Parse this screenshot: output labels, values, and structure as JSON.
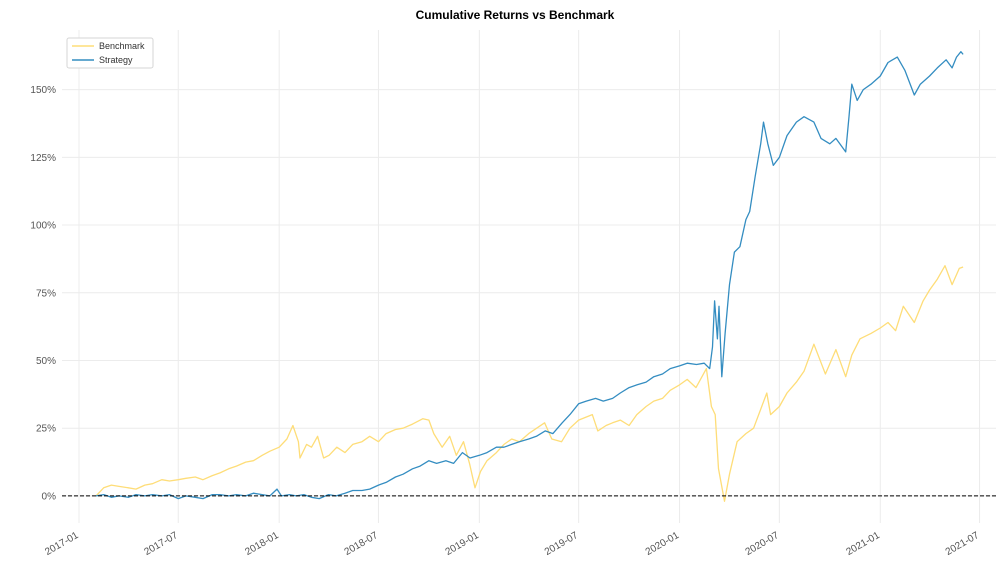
{
  "chart_data": {
    "type": "line",
    "title": "Cumulative Returns vs Benchmark",
    "xlabel": "",
    "ylabel": "",
    "x_range": [
      "2016-12-01",
      "2021-07-31"
    ],
    "ylim": [
      -0.1,
      1.72
    ],
    "y_ticks": [
      0,
      0.25,
      0.5,
      0.75,
      1.0,
      1.25,
      1.5
    ],
    "y_tick_labels": [
      "0%",
      "25%",
      "50%",
      "75%",
      "100%",
      "125%",
      "150%"
    ],
    "x_ticks": [
      "2017-01-01",
      "2017-07-01",
      "2018-01-01",
      "2018-07-01",
      "2019-01-01",
      "2019-07-01",
      "2020-01-01",
      "2020-07-01",
      "2021-01-01",
      "2021-07-01"
    ],
    "x_tick_labels": [
      "2017-01",
      "2017-07",
      "2018-01",
      "2018-07",
      "2019-01",
      "2019-07",
      "2020-01",
      "2020-07",
      "2021-01",
      "2021-07"
    ],
    "grid": true,
    "legend_placement": "top-left",
    "baseline": 0,
    "colors": {
      "benchmark": "#fedd78",
      "strategy": "#348dc1",
      "baseline": "#000000"
    },
    "series": [
      {
        "name": "Benchmark",
        "color": "#fedd78",
        "points": [
          [
            "2017-02-01",
            0.0
          ],
          [
            "2017-02-15",
            0.03
          ],
          [
            "2017-03-01",
            0.04
          ],
          [
            "2017-03-15",
            0.035
          ],
          [
            "2017-04-01",
            0.03
          ],
          [
            "2017-04-15",
            0.025
          ],
          [
            "2017-05-01",
            0.04
          ],
          [
            "2017-05-15",
            0.045
          ],
          [
            "2017-06-01",
            0.06
          ],
          [
            "2017-06-15",
            0.055
          ],
          [
            "2017-07-01",
            0.06
          ],
          [
            "2017-07-15",
            0.065
          ],
          [
            "2017-08-01",
            0.07
          ],
          [
            "2017-08-15",
            0.06
          ],
          [
            "2017-09-01",
            0.075
          ],
          [
            "2017-09-15",
            0.085
          ],
          [
            "2017-10-01",
            0.1
          ],
          [
            "2017-10-15",
            0.11
          ],
          [
            "2017-11-01",
            0.125
          ],
          [
            "2017-11-15",
            0.13
          ],
          [
            "2017-12-01",
            0.15
          ],
          [
            "2017-12-15",
            0.165
          ],
          [
            "2018-01-01",
            0.18
          ],
          [
            "2018-01-15",
            0.21
          ],
          [
            "2018-01-26",
            0.26
          ],
          [
            "2018-02-05",
            0.2
          ],
          [
            "2018-02-08",
            0.14
          ],
          [
            "2018-02-20",
            0.19
          ],
          [
            "2018-03-01",
            0.18
          ],
          [
            "2018-03-12",
            0.22
          ],
          [
            "2018-03-23",
            0.14
          ],
          [
            "2018-04-02",
            0.15
          ],
          [
            "2018-04-16",
            0.18
          ],
          [
            "2018-05-01",
            0.16
          ],
          [
            "2018-05-15",
            0.19
          ],
          [
            "2018-06-01",
            0.2
          ],
          [
            "2018-06-15",
            0.22
          ],
          [
            "2018-07-01",
            0.2
          ],
          [
            "2018-07-15",
            0.23
          ],
          [
            "2018-08-01",
            0.245
          ],
          [
            "2018-08-15",
            0.25
          ],
          [
            "2018-09-01",
            0.265
          ],
          [
            "2018-09-20",
            0.285
          ],
          [
            "2018-10-01",
            0.28
          ],
          [
            "2018-10-10",
            0.23
          ],
          [
            "2018-10-25",
            0.18
          ],
          [
            "2018-11-08",
            0.22
          ],
          [
            "2018-11-20",
            0.15
          ],
          [
            "2018-12-03",
            0.2
          ],
          [
            "2018-12-14",
            0.12
          ],
          [
            "2018-12-24",
            0.03
          ],
          [
            "2019-01-03",
            0.09
          ],
          [
            "2019-01-15",
            0.13
          ],
          [
            "2019-02-01",
            0.16
          ],
          [
            "2019-02-15",
            0.19
          ],
          [
            "2019-03-01",
            0.21
          ],
          [
            "2019-03-15",
            0.2
          ],
          [
            "2019-04-01",
            0.23
          ],
          [
            "2019-04-30",
            0.27
          ],
          [
            "2019-05-13",
            0.21
          ],
          [
            "2019-05-31",
            0.2
          ],
          [
            "2019-06-15",
            0.25
          ],
          [
            "2019-07-01",
            0.28
          ],
          [
            "2019-07-26",
            0.3
          ],
          [
            "2019-08-05",
            0.24
          ],
          [
            "2019-08-20",
            0.26
          ],
          [
            "2019-09-01",
            0.27
          ],
          [
            "2019-09-15",
            0.28
          ],
          [
            "2019-10-01",
            0.26
          ],
          [
            "2019-10-15",
            0.3
          ],
          [
            "2019-11-01",
            0.33
          ],
          [
            "2019-11-15",
            0.35
          ],
          [
            "2019-12-01",
            0.36
          ],
          [
            "2019-12-15",
            0.39
          ],
          [
            "2020-01-01",
            0.41
          ],
          [
            "2020-01-15",
            0.43
          ],
          [
            "2020-01-31",
            0.4
          ],
          [
            "2020-02-19",
            0.47
          ],
          [
            "2020-02-28",
            0.33
          ],
          [
            "2020-03-06",
            0.3
          ],
          [
            "2020-03-12",
            0.1
          ],
          [
            "2020-03-23",
            -0.02
          ],
          [
            "2020-04-01",
            0.08
          ],
          [
            "2020-04-15",
            0.2
          ],
          [
            "2020-05-01",
            0.23
          ],
          [
            "2020-05-15",
            0.25
          ],
          [
            "2020-06-08",
            0.38
          ],
          [
            "2020-06-15",
            0.3
          ],
          [
            "2020-07-01",
            0.33
          ],
          [
            "2020-07-15",
            0.38
          ],
          [
            "2020-08-01",
            0.42
          ],
          [
            "2020-08-15",
            0.46
          ],
          [
            "2020-09-02",
            0.56
          ],
          [
            "2020-09-23",
            0.45
          ],
          [
            "2020-10-12",
            0.54
          ],
          [
            "2020-10-30",
            0.44
          ],
          [
            "2020-11-10",
            0.52
          ],
          [
            "2020-11-25",
            0.58
          ],
          [
            "2020-12-15",
            0.6
          ],
          [
            "2021-01-01",
            0.62
          ],
          [
            "2021-01-15",
            0.64
          ],
          [
            "2021-01-29",
            0.61
          ],
          [
            "2021-02-12",
            0.7
          ],
          [
            "2021-03-04",
            0.64
          ],
          [
            "2021-03-20",
            0.72
          ],
          [
            "2021-04-01",
            0.76
          ],
          [
            "2021-04-15",
            0.8
          ],
          [
            "2021-04-29",
            0.85
          ],
          [
            "2021-05-12",
            0.78
          ],
          [
            "2021-05-25",
            0.84
          ],
          [
            "2021-06-01",
            0.845
          ]
        ]
      },
      {
        "name": "Strategy",
        "color": "#348dc1",
        "points": [
          [
            "2017-02-01",
            0.0
          ],
          [
            "2017-02-15",
            0.005
          ],
          [
            "2017-03-01",
            -0.005
          ],
          [
            "2017-03-15",
            0.0
          ],
          [
            "2017-04-01",
            -0.005
          ],
          [
            "2017-04-15",
            0.005
          ],
          [
            "2017-05-01",
            0.0
          ],
          [
            "2017-05-15",
            0.005
          ],
          [
            "2017-06-01",
            0.0
          ],
          [
            "2017-06-15",
            0.005
          ],
          [
            "2017-07-01",
            -0.01
          ],
          [
            "2017-07-15",
            0.0
          ],
          [
            "2017-08-01",
            -0.005
          ],
          [
            "2017-08-15",
            -0.01
          ],
          [
            "2017-09-01",
            0.005
          ],
          [
            "2017-09-15",
            0.005
          ],
          [
            "2017-10-01",
            0.0
          ],
          [
            "2017-10-15",
            0.005
          ],
          [
            "2017-11-01",
            0.0
          ],
          [
            "2017-11-15",
            0.01
          ],
          [
            "2017-12-01",
            0.005
          ],
          [
            "2017-12-15",
            0.0
          ],
          [
            "2017-12-28",
            0.025
          ],
          [
            "2018-01-05",
            0.0
          ],
          [
            "2018-01-20",
            0.005
          ],
          [
            "2018-02-01",
            0.0
          ],
          [
            "2018-02-15",
            0.005
          ],
          [
            "2018-03-01",
            -0.005
          ],
          [
            "2018-03-15",
            -0.01
          ],
          [
            "2018-04-01",
            0.005
          ],
          [
            "2018-04-15",
            0.0
          ],
          [
            "2018-05-01",
            0.01
          ],
          [
            "2018-05-15",
            0.02
          ],
          [
            "2018-06-01",
            0.02
          ],
          [
            "2018-06-15",
            0.025
          ],
          [
            "2018-07-01",
            0.04
          ],
          [
            "2018-07-15",
            0.05
          ],
          [
            "2018-08-01",
            0.07
          ],
          [
            "2018-08-15",
            0.08
          ],
          [
            "2018-09-01",
            0.1
          ],
          [
            "2018-09-15",
            0.11
          ],
          [
            "2018-10-01",
            0.13
          ],
          [
            "2018-10-15",
            0.12
          ],
          [
            "2018-11-01",
            0.13
          ],
          [
            "2018-11-15",
            0.12
          ],
          [
            "2018-12-01",
            0.16
          ],
          [
            "2018-12-15",
            0.14
          ],
          [
            "2019-01-01",
            0.15
          ],
          [
            "2019-01-15",
            0.16
          ],
          [
            "2019-02-01",
            0.18
          ],
          [
            "2019-02-15",
            0.18
          ],
          [
            "2019-03-01",
            0.19
          ],
          [
            "2019-03-15",
            0.2
          ],
          [
            "2019-04-01",
            0.21
          ],
          [
            "2019-04-15",
            0.22
          ],
          [
            "2019-05-01",
            0.24
          ],
          [
            "2019-05-15",
            0.23
          ],
          [
            "2019-06-01",
            0.27
          ],
          [
            "2019-06-15",
            0.3
          ],
          [
            "2019-07-01",
            0.34
          ],
          [
            "2019-07-15",
            0.35
          ],
          [
            "2019-08-01",
            0.36
          ],
          [
            "2019-08-15",
            0.35
          ],
          [
            "2019-09-01",
            0.36
          ],
          [
            "2019-09-15",
            0.38
          ],
          [
            "2019-10-01",
            0.4
          ],
          [
            "2019-10-15",
            0.41
          ],
          [
            "2019-11-01",
            0.42
          ],
          [
            "2019-11-15",
            0.44
          ],
          [
            "2019-12-01",
            0.45
          ],
          [
            "2019-12-15",
            0.47
          ],
          [
            "2020-01-01",
            0.48
          ],
          [
            "2020-01-15",
            0.49
          ],
          [
            "2020-02-01",
            0.485
          ],
          [
            "2020-02-15",
            0.49
          ],
          [
            "2020-02-25",
            0.47
          ],
          [
            "2020-03-01",
            0.55
          ],
          [
            "2020-03-05",
            0.72
          ],
          [
            "2020-03-10",
            0.58
          ],
          [
            "2020-03-13",
            0.7
          ],
          [
            "2020-03-18",
            0.44
          ],
          [
            "2020-03-24",
            0.6
          ],
          [
            "2020-04-01",
            0.78
          ],
          [
            "2020-04-10",
            0.9
          ],
          [
            "2020-04-20",
            0.92
          ],
          [
            "2020-05-01",
            1.02
          ],
          [
            "2020-05-08",
            1.05
          ],
          [
            "2020-05-18",
            1.18
          ],
          [
            "2020-05-28",
            1.3
          ],
          [
            "2020-06-02",
            1.38
          ],
          [
            "2020-06-10",
            1.3
          ],
          [
            "2020-06-20",
            1.22
          ],
          [
            "2020-07-01",
            1.25
          ],
          [
            "2020-07-15",
            1.33
          ],
          [
            "2020-08-01",
            1.38
          ],
          [
            "2020-08-15",
            1.4
          ],
          [
            "2020-09-02",
            1.38
          ],
          [
            "2020-09-15",
            1.32
          ],
          [
            "2020-10-01",
            1.3
          ],
          [
            "2020-10-12",
            1.32
          ],
          [
            "2020-10-30",
            1.27
          ],
          [
            "2020-11-05",
            1.4
          ],
          [
            "2020-11-10",
            1.52
          ],
          [
            "2020-11-20",
            1.46
          ],
          [
            "2020-12-01",
            1.5
          ],
          [
            "2020-12-15",
            1.52
          ],
          [
            "2021-01-01",
            1.55
          ],
          [
            "2021-01-15",
            1.6
          ],
          [
            "2021-02-01",
            1.62
          ],
          [
            "2021-02-15",
            1.57
          ],
          [
            "2021-03-04",
            1.48
          ],
          [
            "2021-03-15",
            1.52
          ],
          [
            "2021-04-01",
            1.55
          ],
          [
            "2021-04-15",
            1.58
          ],
          [
            "2021-05-01",
            1.61
          ],
          [
            "2021-05-12",
            1.58
          ],
          [
            "2021-05-20",
            1.62
          ],
          [
            "2021-05-28",
            1.64
          ],
          [
            "2021-06-01",
            1.63
          ]
        ]
      }
    ]
  }
}
